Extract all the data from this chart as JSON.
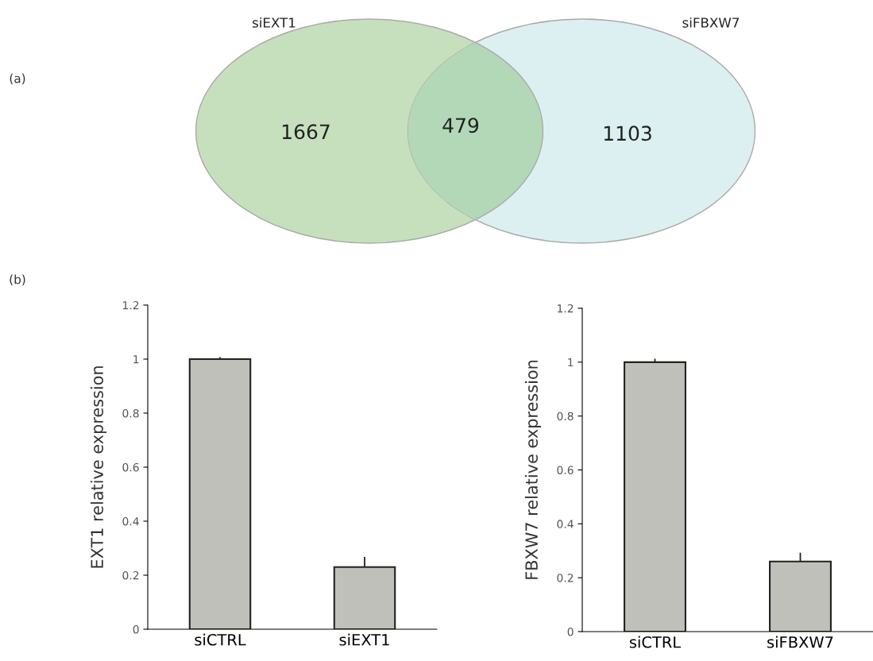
{
  "chart_data": [
    {
      "type": "other",
      "annotations": [
        "(a)",
        "siEXT1",
        "siFBXW7"
      ],
      "categories": [
        null,
        null,
        null
      ],
      "values": [
        1667,
        479,
        1103
      ],
      "data_labels": true,
      "colors": [
        "#c6e0bd",
        "#b3d8b8",
        "#dcf0f1"
      ]
    },
    {
      "type": "bar",
      "annotations": [
        "(b)"
      ],
      "categories": [
        "siCTRL",
        "siEXT1"
      ],
      "values": [
        1.0,
        0.23
      ],
      "errors": [
        0.005,
        0.035
      ],
      "color": "#c0c0bb",
      "ylabel": "EXT1 relative expression",
      "ylim": [
        0,
        1.2
      ],
      "yticks": [
        0,
        0.2,
        0.4,
        0.6,
        0.8,
        {
          "value": 1,
          "label": "1"
        },
        1.2
      ],
      "grid": false
    },
    {
      "type": "bar",
      "categories": [
        "siCTRL",
        "siFBXW7"
      ],
      "values": [
        1.0,
        0.26
      ],
      "errors": [
        0.01,
        0.03
      ],
      "color": "#c0c0bb",
      "ylabel": "FBXW7 relative expression",
      "ylim": [
        0,
        1.2
      ],
      "yticks": [
        0,
        0.2,
        0.4,
        0.6,
        0.8,
        {
          "value": 1,
          "label": "1"
        },
        1.2
      ],
      "grid": false
    }
  ]
}
